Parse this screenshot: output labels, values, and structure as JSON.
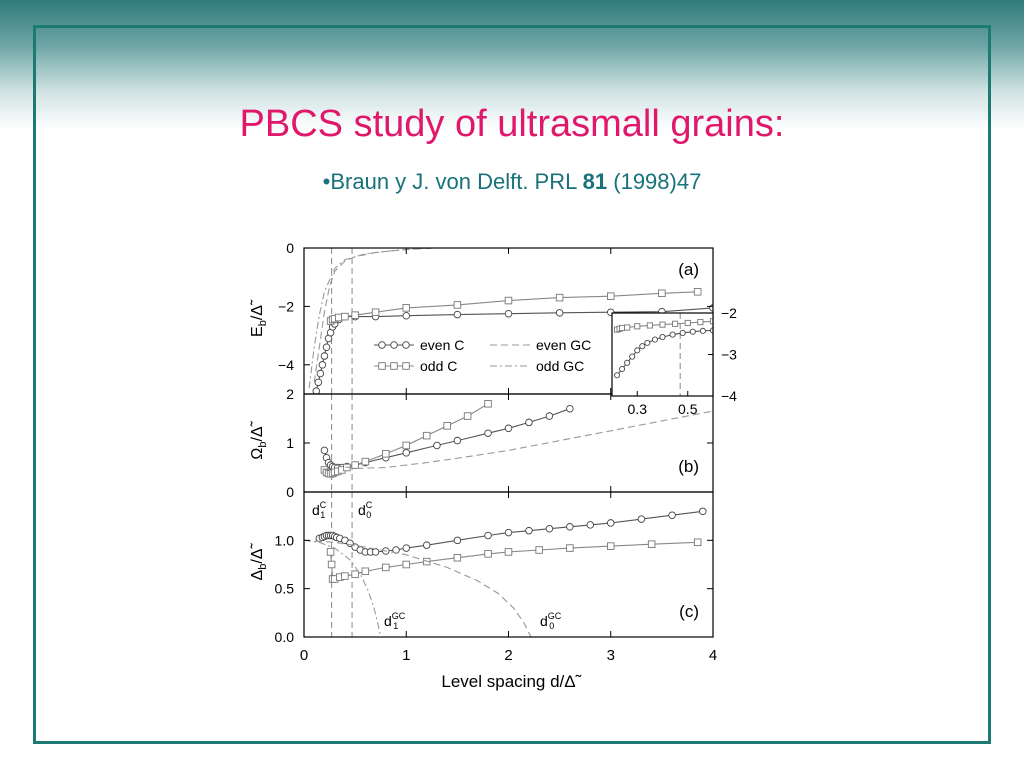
{
  "slide": {
    "title": "PBCS study of ultrasmall grains:",
    "reference_prefix": "•Braun y J. von Delft. PRL ",
    "reference_volume": "81",
    "reference_suffix": " (1998)47",
    "colors": {
      "title": "#e0186c",
      "reference": "#17727a",
      "frame": "#1d7a72"
    }
  },
  "chart_data": {
    "type": "line",
    "shared_x": {
      "xlabel": "Level spacing d/Δ̃",
      "xlim": [
        0,
        4
      ],
      "ticks": [
        "0",
        "1",
        "2",
        "3",
        "4"
      ]
    },
    "panels": [
      {
        "id": "a",
        "label": "(a)",
        "ylabel_main": "E",
        "ylabel_sub": "b",
        "ylabel_tail": "/Δ̃",
        "ylim": [
          -5,
          0
        ],
        "yticks": [
          "0",
          "−2",
          "−4"
        ],
        "legend": [
          {
            "name": "even C",
            "marker": "circle",
            "dash": ""
          },
          {
            "name": "odd C",
            "marker": "square",
            "dash": ""
          },
          {
            "name": "even GC",
            "marker": "",
            "dash": "long"
          },
          {
            "name": "odd GC",
            "marker": "",
            "dash": "dashdot"
          }
        ],
        "series": [
          {
            "name": "even C",
            "marker": "circle",
            "x": [
              0.12,
              0.14,
              0.16,
              0.18,
              0.2,
              0.22,
              0.24,
              0.26,
              0.28,
              0.3,
              0.34,
              0.4,
              0.5,
              0.7,
              1,
              1.5,
              2,
              2.5,
              3,
              3.5,
              4
            ],
            "y": [
              -4.9,
              -4.6,
              -4.3,
              -4.0,
              -3.7,
              -3.4,
              -3.1,
              -2.9,
              -2.7,
              -2.6,
              -2.45,
              -2.35,
              -2.35,
              -2.35,
              -2.32,
              -2.28,
              -2.25,
              -2.22,
              -2.2,
              -2.18,
              -2.05
            ]
          },
          {
            "name": "odd C",
            "marker": "square",
            "x": [
              0.26,
              0.28,
              0.3,
              0.34,
              0.4,
              0.5,
              0.7,
              1,
              1.5,
              2,
              2.5,
              3,
              3.5,
              3.85
            ],
            "y": [
              -2.5,
              -2.45,
              -2.42,
              -2.38,
              -2.35,
              -2.3,
              -2.2,
              -2.05,
              -1.95,
              -1.8,
              -1.7,
              -1.65,
              -1.55,
              -1.5
            ]
          },
          {
            "name": "even GC",
            "marker": "",
            "x": [
              0.1,
              0.15,
              0.2,
              0.25,
              0.3,
              0.4,
              0.5,
              0.7,
              1,
              1.3
            ],
            "y": [
              -4.6,
              -3.4,
              -2.2,
              -1.3,
              -0.8,
              -0.45,
              -0.3,
              -0.15,
              -0.05,
              0
            ]
          },
          {
            "name": "odd GC",
            "marker": "",
            "x": [
              0.05,
              0.1,
              0.15,
              0.2,
              0.3,
              0.4,
              0.6,
              0.9,
              1.2
            ],
            "y": [
              -4.8,
              -3.4,
              -2.3,
              -1.5,
              -0.7,
              -0.4,
              -0.2,
              -0.08,
              0
            ]
          }
        ]
      },
      {
        "id": "b",
        "label": "(b)",
        "ylabel_main": "Ω",
        "ylabel_sub": "b",
        "ylabel_tail": "/Δ̃",
        "ylim": [
          0,
          2
        ],
        "yticks": [
          "2",
          "1",
          "0"
        ],
        "series": [
          {
            "name": "even C",
            "marker": "circle",
            "x": [
              0.2,
              0.22,
              0.24,
              0.26,
              0.28,
              0.3,
              0.33,
              0.37,
              0.42,
              0.5,
              0.6,
              0.8,
              1.0,
              1.3,
              1.5,
              1.8,
              2.0,
              2.2,
              2.4,
              2.6
            ],
            "y": [
              0.85,
              0.7,
              0.6,
              0.55,
              0.52,
              0.5,
              0.5,
              0.5,
              0.52,
              0.55,
              0.6,
              0.7,
              0.8,
              0.95,
              1.05,
              1.2,
              1.3,
              1.42,
              1.55,
              1.7
            ]
          },
          {
            "name": "odd C",
            "marker": "square",
            "x": [
              0.2,
              0.22,
              0.24,
              0.26,
              0.28,
              0.3,
              0.33,
              0.37,
              0.42,
              0.5,
              0.6,
              0.8,
              1.0,
              1.2,
              1.4,
              1.6,
              1.8
            ],
            "y": [
              0.45,
              0.4,
              0.38,
              0.37,
              0.38,
              0.4,
              0.42,
              0.45,
              0.5,
              0.55,
              0.62,
              0.78,
              0.95,
              1.15,
              1.35,
              1.55,
              1.8
            ]
          },
          {
            "name": "even GC",
            "marker": "",
            "x": [
              0.3,
              0.5,
              0.8,
              1.2,
              1.6,
              2.0,
              2.5,
              3.0,
              3.5,
              4.0
            ],
            "y": [
              0.55,
              0.48,
              0.5,
              0.6,
              0.72,
              0.85,
              1.05,
              1.25,
              1.45,
              1.65
            ]
          }
        ]
      },
      {
        "id": "c",
        "label": "(c)",
        "ylabel_main": "Δ",
        "ylabel_sub": "b",
        "ylabel_tail": "/Δ̃",
        "ylim": [
          0,
          1.5
        ],
        "yticks": [
          "1.0",
          "0.5",
          "0.0"
        ],
        "annotations": [
          {
            "base": "d",
            "sup": "C",
            "sub": "1"
          },
          {
            "base": "d",
            "sup": "C",
            "sub": "0"
          },
          {
            "base": "d",
            "sup": "GC",
            "sub": "1"
          },
          {
            "base": "d",
            "sup": "GC",
            "sub": "0"
          }
        ],
        "series": [
          {
            "name": "even C",
            "marker": "circle",
            "x": [
              0.15,
              0.18,
              0.2,
              0.22,
              0.24,
              0.26,
              0.28,
              0.3,
              0.32,
              0.35,
              0.4,
              0.45,
              0.5,
              0.55,
              0.6,
              0.65,
              0.7,
              0.8,
              0.9,
              1.0,
              1.2,
              1.5,
              1.8,
              2.0,
              2.2,
              2.4,
              2.6,
              2.8,
              3.0,
              3.3,
              3.6,
              3.9
            ],
            "y": [
              1.02,
              1.03,
              1.04,
              1.05,
              1.05,
              1.05,
              1.05,
              1.04,
              1.03,
              1.02,
              1.0,
              0.97,
              0.93,
              0.9,
              0.88,
              0.88,
              0.88,
              0.89,
              0.9,
              0.92,
              0.95,
              1.0,
              1.05,
              1.08,
              1.1,
              1.12,
              1.14,
              1.16,
              1.18,
              1.22,
              1.26,
              1.3
            ]
          },
          {
            "name": "odd C",
            "marker": "square",
            "x": [
              0.26,
              0.27,
              0.28,
              0.3,
              0.35,
              0.4,
              0.5,
              0.6,
              0.8,
              1.0,
              1.2,
              1.5,
              1.8,
              2.0,
              2.3,
              2.6,
              3.0,
              3.4,
              3.85
            ],
            "y": [
              0.88,
              0.75,
              0.6,
              0.6,
              0.62,
              0.63,
              0.65,
              0.68,
              0.72,
              0.75,
              0.78,
              0.82,
              0.86,
              0.88,
              0.9,
              0.92,
              0.94,
              0.96,
              0.98
            ]
          },
          {
            "name": "even GC",
            "marker": "",
            "x": [
              0.0,
              0.3,
              0.6,
              1.0,
              1.4,
              1.7,
              1.9,
              2.05,
              2.15,
              2.22
            ],
            "y": [
              1.0,
              0.98,
              0.93,
              0.85,
              0.72,
              0.58,
              0.45,
              0.3,
              0.15,
              0.0
            ]
          },
          {
            "name": "odd GC",
            "marker": "",
            "x": [
              0.0,
              0.15,
              0.3,
              0.45,
              0.55,
              0.62,
              0.68,
              0.72,
              0.75
            ],
            "y": [
              1.0,
              0.98,
              0.92,
              0.8,
              0.65,
              0.5,
              0.32,
              0.15,
              0.0
            ]
          }
        ]
      },
      {
        "id": "inset",
        "label": "",
        "xlim": [
          0.2,
          0.6
        ],
        "ylim": [
          -4,
          -2
        ],
        "xticks": [
          "0.3",
          "0.5"
        ],
        "yticks": [
          "−2",
          "−3",
          "−4"
        ],
        "series": [
          {
            "name": "even C",
            "marker": "circle",
            "x": [
              0.22,
              0.24,
              0.26,
              0.28,
              0.3,
              0.32,
              0.34,
              0.37,
              0.4,
              0.44,
              0.48,
              0.52,
              0.56,
              0.6
            ],
            "y": [
              -3.5,
              -3.35,
              -3.2,
              -3.05,
              -2.9,
              -2.8,
              -2.72,
              -2.64,
              -2.58,
              -2.52,
              -2.48,
              -2.45,
              -2.43,
              -2.42
            ]
          },
          {
            "name": "odd C",
            "marker": "square",
            "x": [
              0.22,
              0.23,
              0.24,
              0.26,
              0.3,
              0.35,
              0.4,
              0.45,
              0.5,
              0.55,
              0.6
            ],
            "y": [
              -2.4,
              -2.38,
              -2.36,
              -2.35,
              -2.32,
              -2.3,
              -2.28,
              -2.26,
              -2.24,
              -2.22,
              -2.2
            ]
          }
        ]
      }
    ]
  }
}
